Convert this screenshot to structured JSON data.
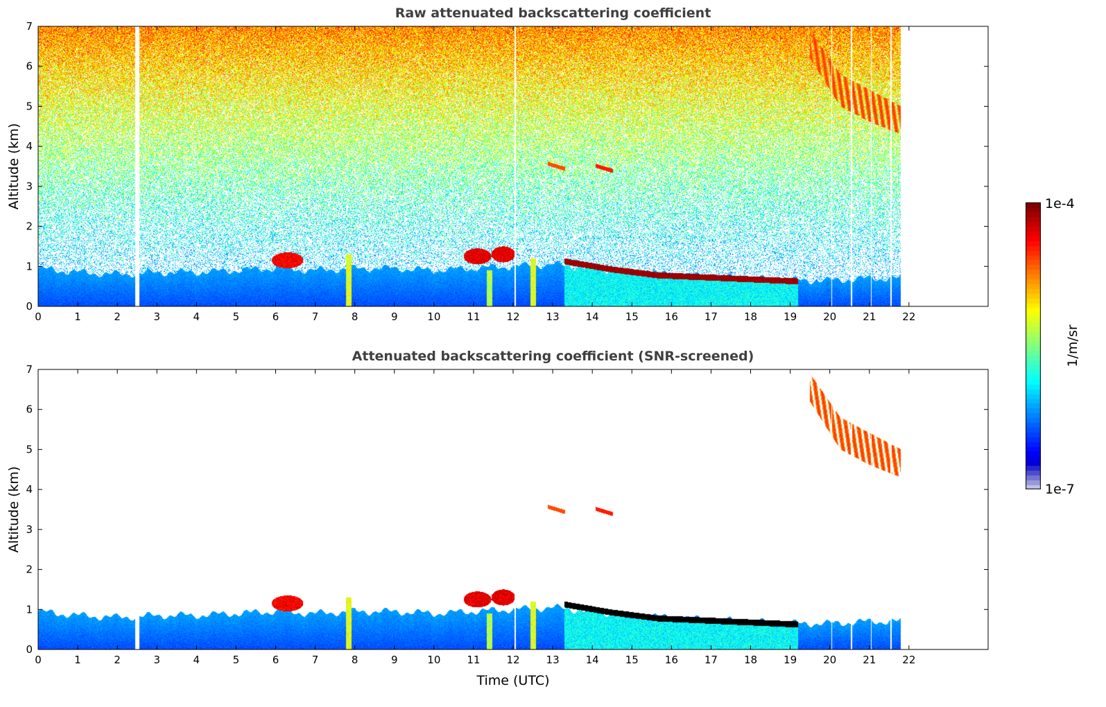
{
  "chart_data": [
    {
      "type": "heatmap",
      "title": "Raw attenuated backscattering coefficient",
      "xlabel": "",
      "ylabel": "Altitude (km)",
      "xlim": [
        0,
        24
      ],
      "ylim": [
        0,
        7
      ],
      "x_ticks": [
        "0",
        "1",
        "2",
        "3",
        "4",
        "5",
        "6",
        "7",
        "8",
        "9",
        "10",
        "11",
        "12",
        "13",
        "14",
        "15",
        "16",
        "17",
        "18",
        "19",
        "20",
        "21",
        "22"
      ],
      "y_ticks": [
        "0",
        "1",
        "2",
        "3",
        "4",
        "5",
        "6",
        "7"
      ],
      "data_end_time": 21.8,
      "data_gaps": [
        2.5,
        12.05,
        20.05,
        20.55,
        21.05,
        21.55
      ],
      "boundary_layer_top": [
        [
          0,
          0.95
        ],
        [
          1,
          0.85
        ],
        [
          2,
          0.8
        ],
        [
          3,
          0.85
        ],
        [
          4,
          0.85
        ],
        [
          5,
          0.9
        ],
        [
          6,
          0.95
        ],
        [
          7,
          0.9
        ],
        [
          8,
          0.95
        ],
        [
          9,
          0.95
        ],
        [
          10,
          0.9
        ],
        [
          11,
          0.95
        ],
        [
          12,
          1.0
        ],
        [
          13,
          1.05
        ],
        [
          14,
          0.95
        ],
        [
          15,
          0.85
        ],
        [
          16,
          0.8
        ],
        [
          17,
          0.75
        ],
        [
          18,
          0.7
        ],
        [
          19,
          0.65
        ],
        [
          20,
          0.65
        ],
        [
          21,
          0.7
        ],
        [
          21.8,
          0.7
        ]
      ],
      "features": [
        {
          "kind": "stratocumulus",
          "start": 13.3,
          "end": 19.2,
          "top": [
            1.2,
            1.0,
            0.85,
            0.8,
            0.75,
            0.7
          ],
          "thickness": 0.15,
          "level": 0.97
        },
        {
          "kind": "cloud",
          "time": 6.3,
          "altitude": 1.15,
          "width": 0.4,
          "level": 0.88
        },
        {
          "kind": "cloud",
          "time": 11.1,
          "altitude": 1.25,
          "width": 0.35,
          "level": 0.9
        },
        {
          "kind": "cloud",
          "time": 11.75,
          "altitude": 1.3,
          "width": 0.3,
          "level": 0.9
        },
        {
          "kind": "plume",
          "time": 7.85,
          "altitude": 1.3,
          "level": 0.6
        },
        {
          "kind": "plume",
          "time": 12.5,
          "altitude": 1.2,
          "level": 0.6
        },
        {
          "kind": "plume",
          "time": 11.4,
          "altitude": 0.9,
          "level": 0.55
        },
        {
          "kind": "cirrus",
          "start": 19.5,
          "end": 21.8,
          "top": [
            6.9,
            5.8,
            5.4,
            5.0
          ],
          "bottom": [
            6.2,
            5.0,
            4.6,
            4.3
          ],
          "level": 0.8
        },
        {
          "kind": "small_cloud",
          "time": 13.1,
          "altitude": 3.5,
          "level": 0.8
        },
        {
          "kind": "small_cloud",
          "time": 14.3,
          "altitude": 3.45,
          "level": 0.85
        }
      ],
      "colorbar": {
        "label": "1/m/sr",
        "min_label": "1e-7",
        "max_label": "1e-4",
        "colormap": "jet"
      }
    },
    {
      "type": "heatmap",
      "title": "Attenuated backscattering coefficient (SNR-screened)",
      "xlabel": "Time (UTC)",
      "ylabel": "Altitude (km)",
      "xlim": [
        0,
        24
      ],
      "ylim": [
        0,
        7
      ],
      "x_ticks": [
        "0",
        "1",
        "2",
        "3",
        "4",
        "5",
        "6",
        "7",
        "8",
        "9",
        "10",
        "11",
        "12",
        "13",
        "14",
        "15",
        "16",
        "17",
        "18",
        "19",
        "20",
        "21",
        "22"
      ],
      "y_ticks": [
        "0",
        "1",
        "2",
        "3",
        "4",
        "5",
        "6",
        "7"
      ],
      "data_end_time": 21.8,
      "data_gaps": [
        2.5,
        12.05,
        20.05,
        20.55,
        21.05,
        21.55
      ]
    }
  ],
  "colors": {
    "jet_dark_red": "#7f0000",
    "jet_blue": "#0040ff",
    "title_gray": "#404040",
    "saturated": "#000000"
  }
}
